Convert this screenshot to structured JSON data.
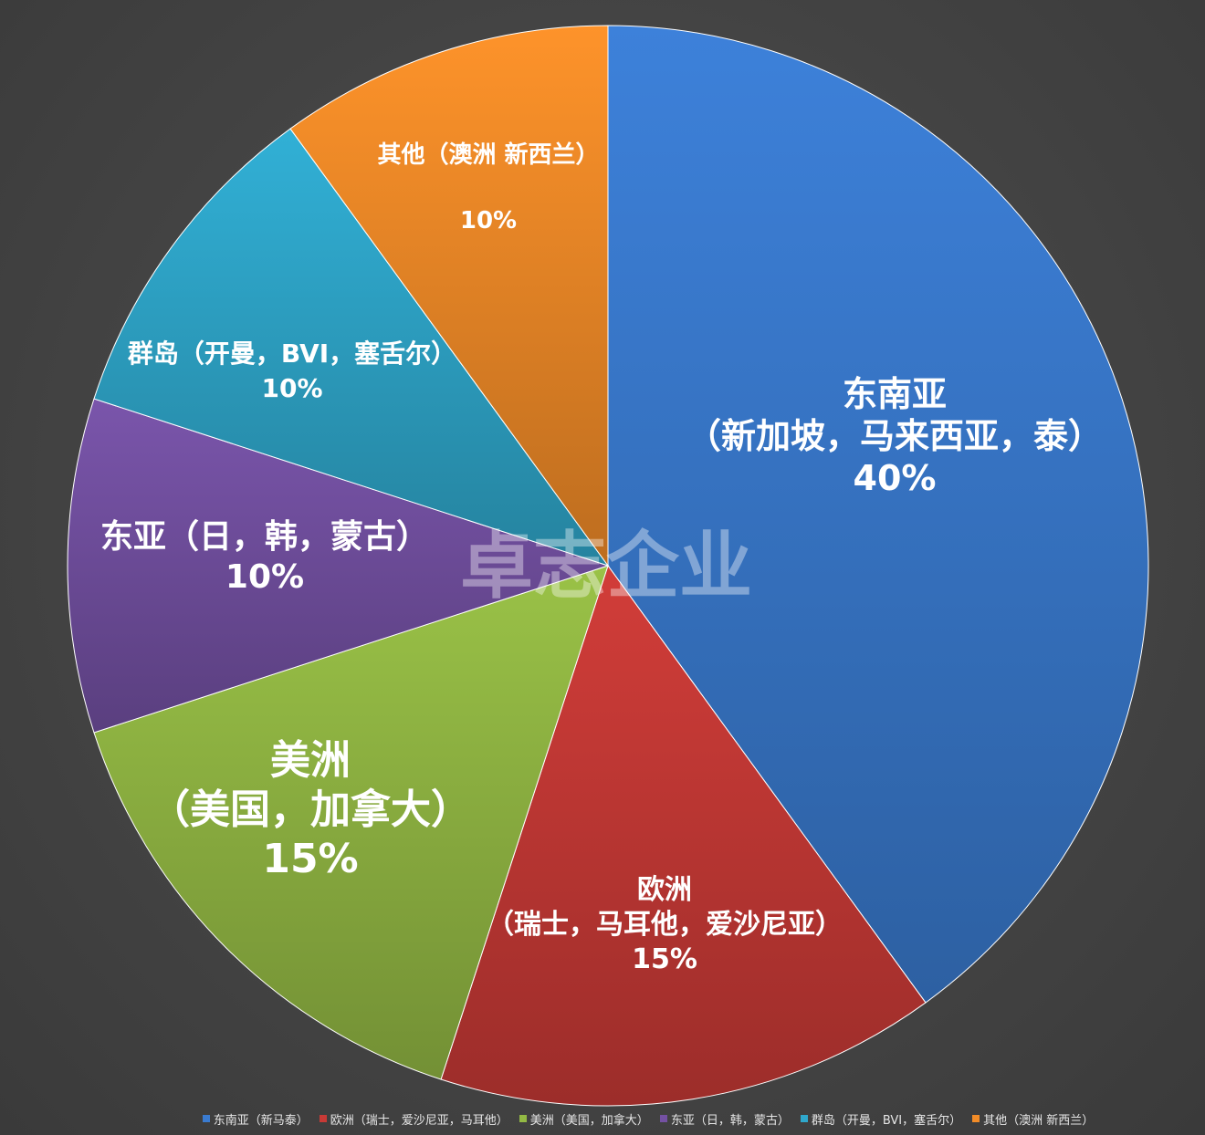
{
  "chart_data": {
    "type": "pie",
    "categories": [
      "东南亚（新马泰）",
      "欧洲（瑞士，爱沙尼亚，马耳他）",
      "美洲（美国，加拿大）",
      "东亚（日，韩，蒙古）",
      "群岛（开曼，BVI，塞舌尔）",
      "其他（澳洲 新西兰）"
    ],
    "values": [
      40,
      15,
      15,
      10,
      10,
      10
    ],
    "colors": [
      "#3a7bd0",
      "#c83a36",
      "#93b944",
      "#7451a3",
      "#2fa8cc",
      "#f28c28"
    ],
    "slice_labels": [
      {
        "lines": [
          "东南亚",
          "（新加坡，马来西亚，泰）",
          "40%"
        ]
      },
      {
        "lines": [
          "欧洲",
          "（瑞士，马耳他，爱沙尼亚）",
          "15%"
        ]
      },
      {
        "lines": [
          "美洲",
          "（美国，加拿大）",
          "15%"
        ]
      },
      {
        "lines": [
          "东亚（日，韩，蒙古）",
          "10%"
        ]
      },
      {
        "lines": [
          "群岛（开曼，BVI，塞舌尔）",
          "10%"
        ]
      },
      {
        "lines": [
          "其他（澳洲 新西兰）",
          "",
          "10%"
        ]
      }
    ],
    "legend_position": "bottom",
    "title": ""
  },
  "watermark": "卓志企业",
  "legend": [
    {
      "label": "东南亚（新马泰）",
      "color": "#3a7bd0"
    },
    {
      "label": "欧洲（瑞士，爱沙尼亚，马耳他）",
      "color": "#c83a36"
    },
    {
      "label": "美洲（美国，加拿大）",
      "color": "#93b944"
    },
    {
      "label": "东亚（日，韩，蒙古）",
      "color": "#7451a3"
    },
    {
      "label": "群岛（开曼，BVI，塞舌尔）",
      "color": "#2fa8cc"
    },
    {
      "label": "其他（澳洲 新西兰）",
      "color": "#f28c28"
    }
  ]
}
